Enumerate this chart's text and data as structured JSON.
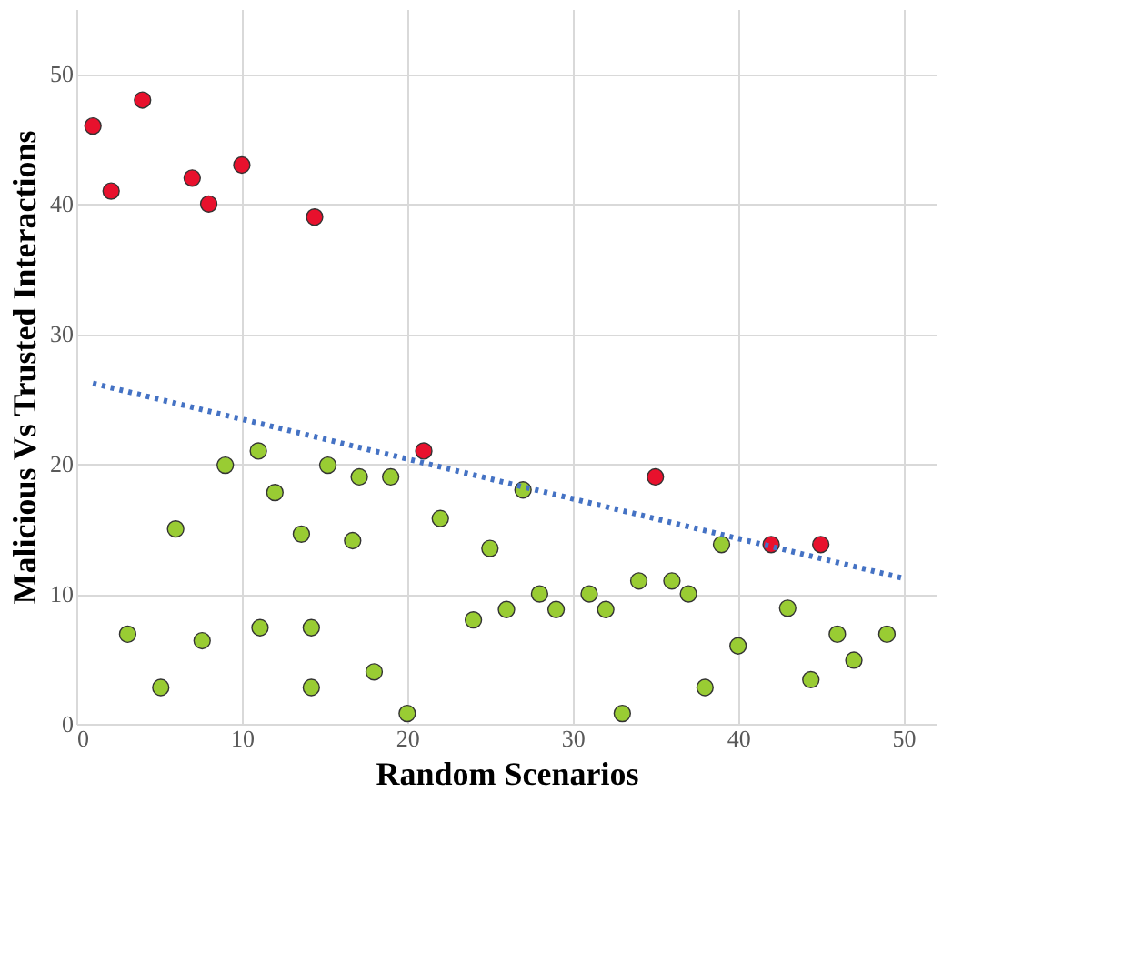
{
  "chart_data": {
    "type": "scatter",
    "xlabel": "Random Scenarios",
    "ylabel": "Malicious Vs Trusted Interactions",
    "xlim": [
      0,
      52
    ],
    "xticks": [
      0,
      10,
      20,
      30,
      40,
      50
    ],
    "ylim": [
      0,
      55
    ],
    "yticks": [
      0,
      10,
      20,
      30,
      40,
      50
    ],
    "grid": true,
    "marker": "circle",
    "series": [
      {
        "color": "#e8112d",
        "x": [
          1,
          2.1,
          4,
          7,
          8,
          10,
          14.4,
          21,
          35,
          42,
          45
        ],
        "values": [
          46,
          41,
          48,
          42,
          40,
          43,
          39,
          21,
          19,
          13.8,
          13.8
        ]
      },
      {
        "color": "#99cc33",
        "x": [
          3.1,
          5.1,
          6,
          7.6,
          9,
          11,
          11.1,
          12,
          13.6,
          14.2,
          14.2,
          15.2,
          16.7,
          17.1,
          18,
          19,
          20,
          22,
          24,
          25,
          26,
          27,
          28,
          29,
          31,
          32,
          33,
          34,
          36,
          37,
          38,
          39,
          40,
          43,
          44.4,
          46,
          47,
          49
        ],
        "values": [
          6.9,
          2.8,
          15,
          6.4,
          19.9,
          21,
          7.4,
          17.8,
          14.6,
          7.4,
          2.8,
          19.9,
          14.1,
          19,
          4,
          19,
          0.8,
          15.8,
          8,
          13.5,
          8.8,
          18,
          10,
          8.8,
          10,
          8.8,
          0.8,
          11,
          11,
          10,
          2.8,
          13.8,
          6,
          8.9,
          3.4,
          6.9,
          4.9,
          6.9
        ]
      },
      {
        "type": "line",
        "color": "#4472c4",
        "line_style": "dotted",
        "marker": "none",
        "x": [
          1,
          50
        ],
        "values": [
          26.2,
          11.2
        ]
      }
    ]
  }
}
